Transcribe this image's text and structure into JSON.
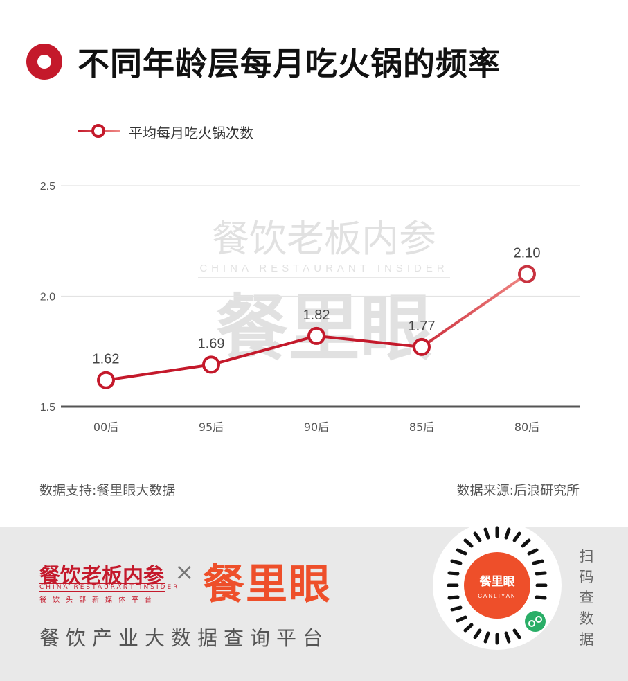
{
  "title": "不同年龄层每月吃火锅的频率",
  "legend": {
    "label": "平均每月吃火锅次数"
  },
  "footer": {
    "left": "数据支持:餐里眼大数据",
    "right": "数据来源:后浪研究所"
  },
  "watermark": {
    "brand_cn": "餐饮老板内参",
    "brand_en": "CHINA RESTAURANT INSIDER",
    "brand_big": "餐里眼"
  },
  "banner": {
    "brand1": "餐饮老板内参",
    "brand1_en": "CHINA RESTAURANT INSIDER",
    "brand1_sub": "餐饮头部新媒体平台",
    "times": "×",
    "brand2": "餐里眼",
    "tagline": "餐饮产业大数据查询平台",
    "qr_center_cn": "餐里眼",
    "qr_center_en": "CANLIYAN",
    "scan": "扫码查数据"
  },
  "colors": {
    "accent": "#c4192b",
    "line_end": "#f08a86",
    "brand2": "#ee4f2a"
  },
  "chart_data": {
    "type": "line",
    "categories": [
      "00后",
      "95后",
      "90后",
      "85后",
      "80后"
    ],
    "series": [
      {
        "name": "平均每月吃火锅次数",
        "values": [
          1.62,
          1.69,
          1.82,
          1.77,
          2.1
        ]
      }
    ],
    "point_labels": [
      "1.62",
      "1.69",
      "1.82",
      "1.77",
      "2.10"
    ],
    "yticks": [
      "1.5",
      "2.0",
      "2.5"
    ],
    "ylim": [
      1.5,
      2.5
    ],
    "grid": true,
    "legend_position": "top-left"
  }
}
